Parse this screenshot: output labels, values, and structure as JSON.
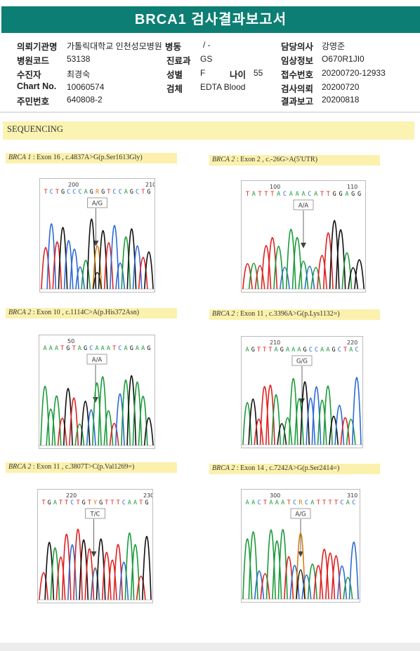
{
  "report": {
    "title": "BRCA1 검사결과보고서"
  },
  "patient_info": {
    "rows": [
      [
        {
          "label": "의뢰기관명",
          "value": "가톨릭대학교 인천성모병원"
        },
        {
          "label": "병동",
          "value": "/ -"
        },
        {
          "label": "담당의사",
          "value": "강영준"
        }
      ],
      [
        {
          "label": "병원코드",
          "value": "53138"
        },
        {
          "label": "진료과",
          "value": "GS"
        },
        {
          "label": "임상정보",
          "value": "O670R1JI0"
        }
      ],
      [
        {
          "label": "수진자",
          "value": "최경숙"
        },
        {
          "label": "성별",
          "value": "F"
        },
        {
          "label": "나이",
          "value": "55"
        },
        {
          "label": "접수번호",
          "value": "20200720-12933"
        }
      ],
      [
        {
          "label": "Chart No.",
          "value": "10060574"
        },
        {
          "label": "검체",
          "value": "EDTA Blood"
        },
        {
          "label": "검사의뢰",
          "value": "20200720"
        }
      ],
      [
        {
          "label": "주민번호",
          "value": "640808-2"
        },
        {
          "label": "결과보고",
          "value": "20200818"
        }
      ]
    ]
  },
  "sequencing": {
    "header": "SEQUENCING",
    "panels": [
      {
        "gene": "BRCA 1",
        "desc": ": Exon 16 , c.4837A>G(p.Ser1613Gly)",
        "positions": [
          "200",
          "210"
        ],
        "sequence": "TCTGCCCAGRGTCCAGCTG",
        "genotype": "A/G"
      },
      {
        "gene": "BRCA 2",
        "desc": ": Exon 2 , c.-26G>A(5'UTR)",
        "positions": [
          "100",
          "110"
        ],
        "sequence": "TATTTACAAACATTGGAGG",
        "genotype": "A/A"
      },
      {
        "gene": "BRCA 2",
        "desc": ": Exon 10 , c.1114C>A(p.His372Asn)",
        "positions": [
          "50"
        ],
        "sequence": "AAATGTAGCAAATCAGAAG",
        "genotype": "A/A"
      },
      {
        "gene": "BRCA 2",
        "desc": ": Exon 11 , c.3396A>G(p.Lys1132=)",
        "positions": [
          "210",
          "220"
        ],
        "sequence": "AGTTTAGAAAGCCAAGCTAC",
        "genotype": "G/G"
      },
      {
        "gene": "BRCA 2",
        "desc": ": Exon 11 , c.3807T>C(p.Val1269=)",
        "positions": [
          "220",
          "230"
        ],
        "sequence": "TGATTCTGTYGTTTCAATG",
        "genotype": "T/C"
      },
      {
        "gene": "BRCA 2",
        "desc": ": Exon 14 , c.7242A>G(p.Ser2414=)",
        "positions": [
          "300",
          "310"
        ],
        "sequence": "AACTAAATCRCATTTTCAC",
        "genotype": "A/G"
      }
    ]
  },
  "colors": {
    "A": "#1a9b3a",
    "C": "#2d6bd3",
    "G": "#111111",
    "T": "#e02020",
    "R": "#d08010",
    "Y": "#d08010"
  }
}
